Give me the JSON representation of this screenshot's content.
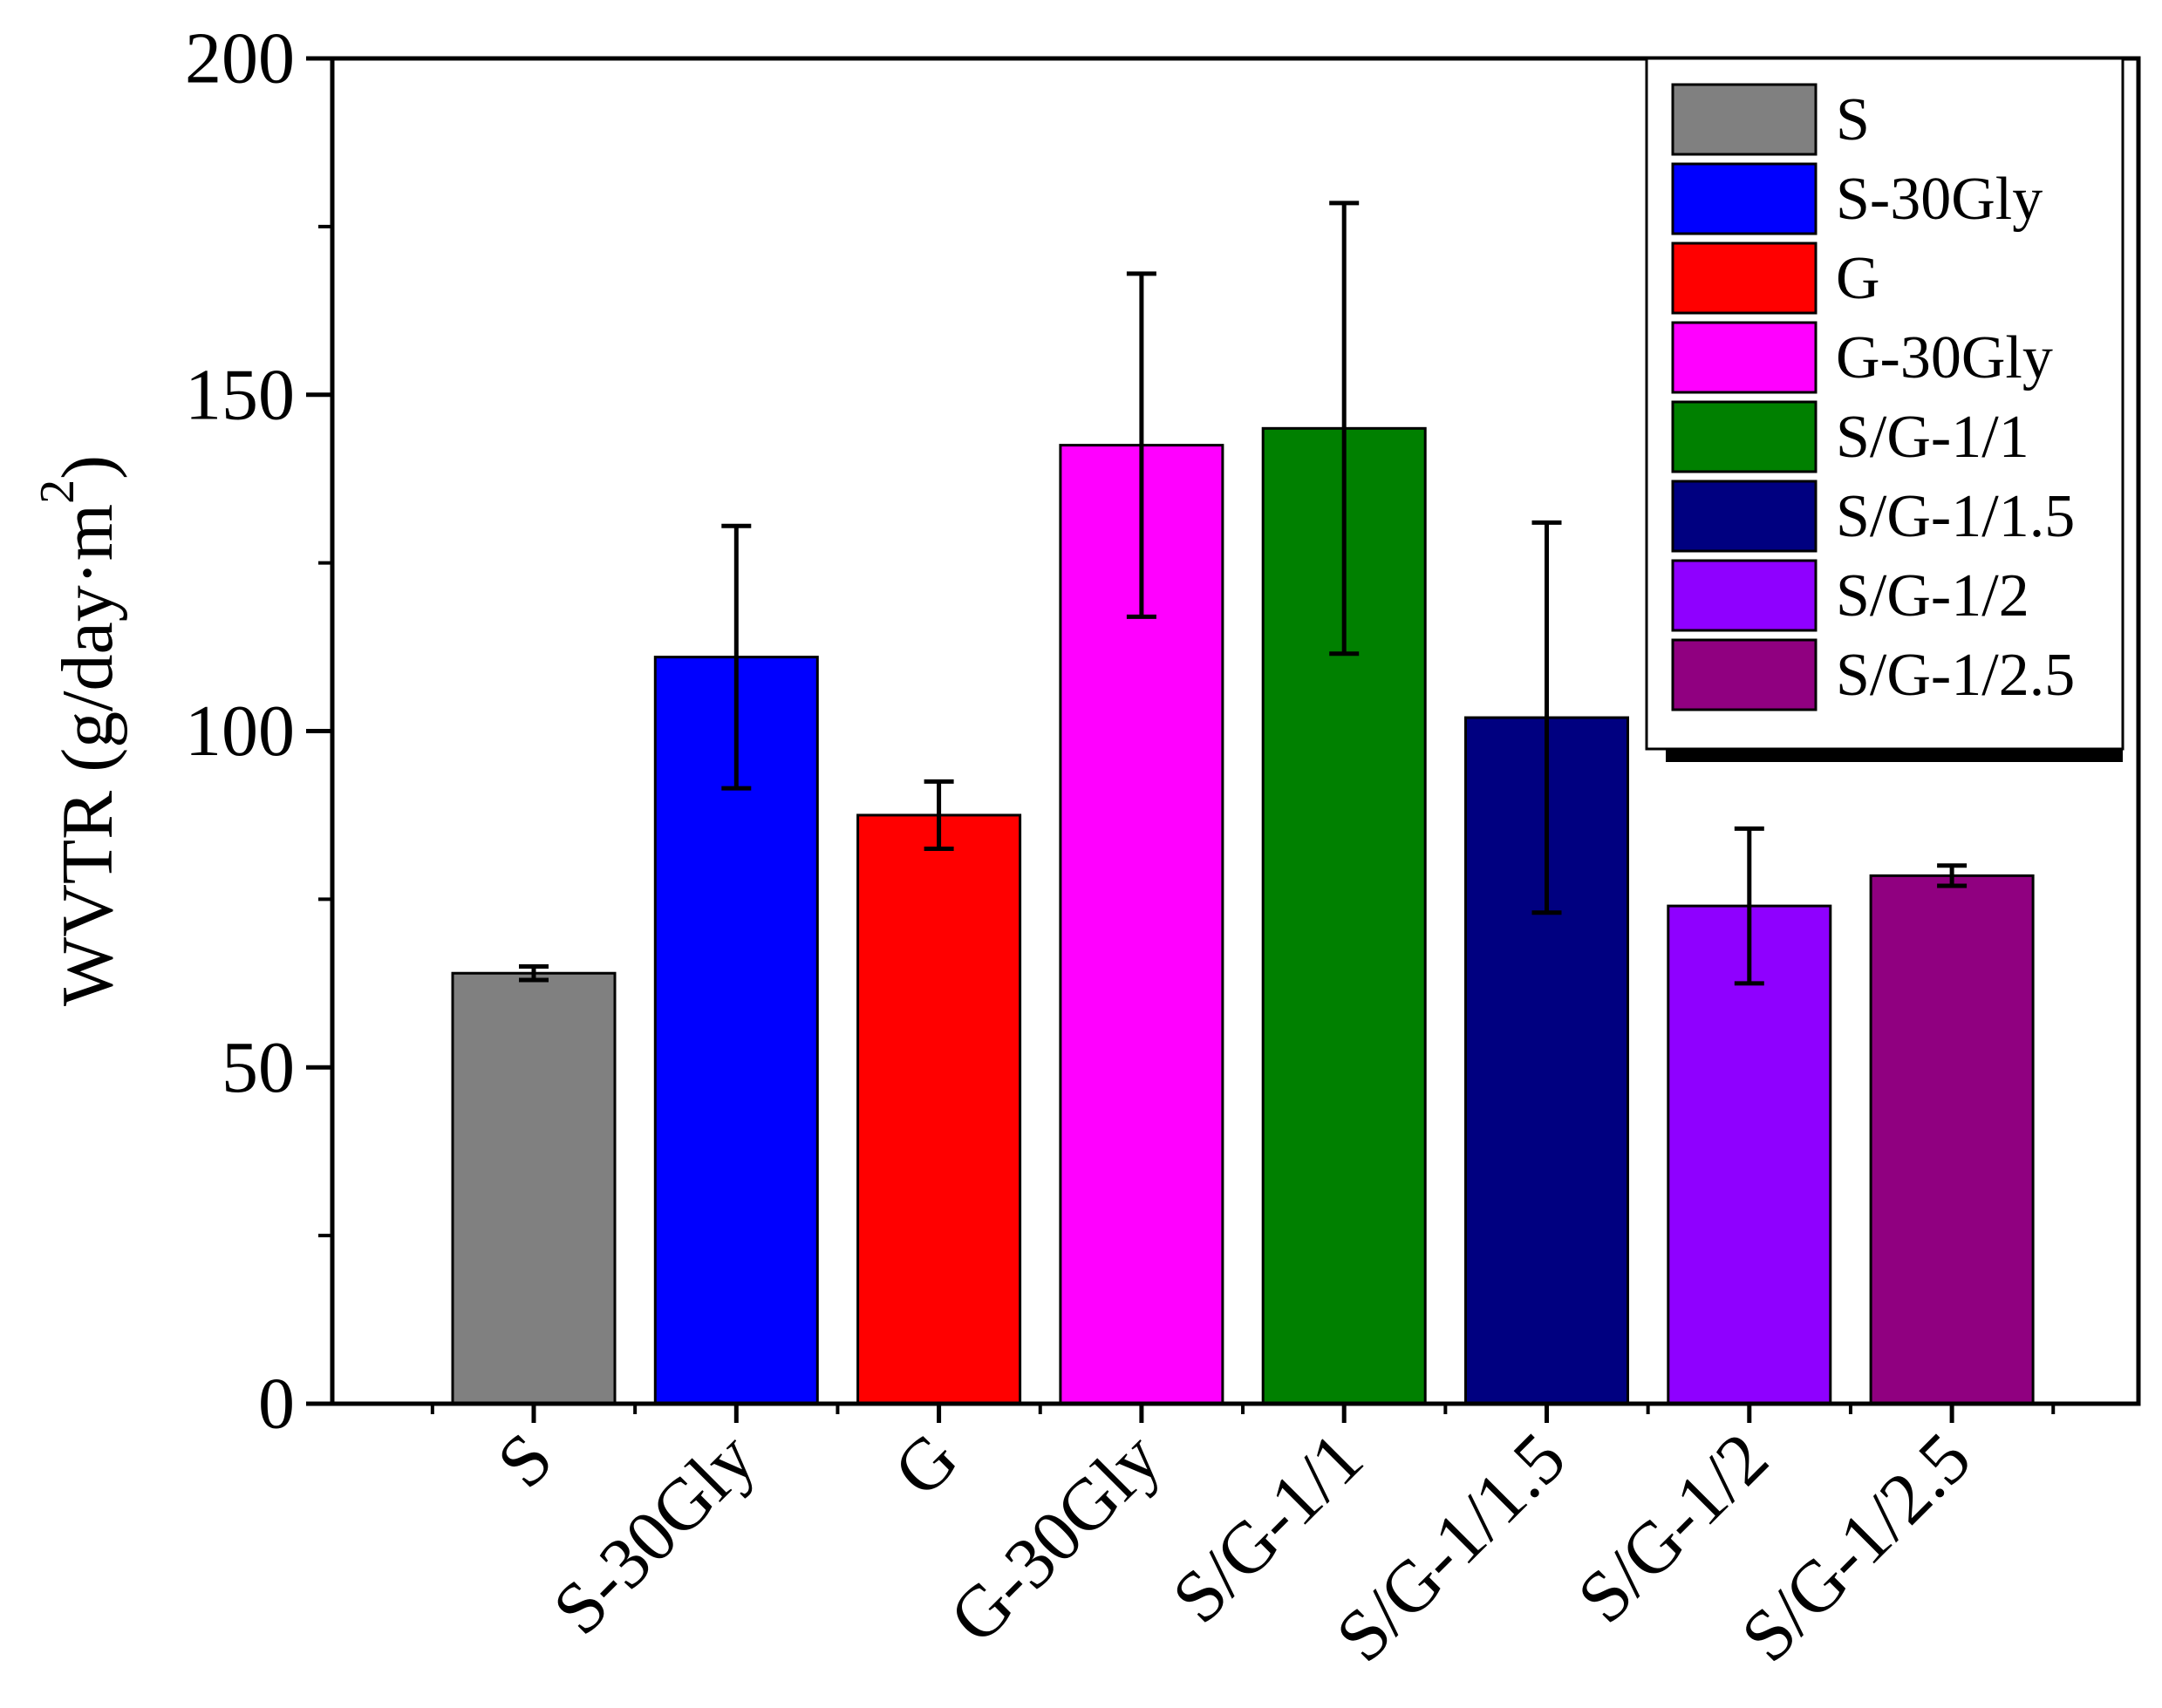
{
  "chart_data": {
    "type": "bar",
    "title": "",
    "xlabel": "",
    "ylabel": "WVTR (g/day·m",
    "ylabel_superscript": "2",
    "ylabel_close": ")",
    "ylim": [
      0,
      200
    ],
    "yticks": [
      0,
      50,
      100,
      150,
      200
    ],
    "y_minor_step": 25,
    "grid": false,
    "legend_position": "top-right",
    "categories": [
      "S",
      "S-30Gly",
      "G",
      "G-30Gly",
      "S/G-1/1",
      "S/G-1/1.5",
      "S/G-1/2",
      "S/G-1/2.5"
    ],
    "values": [
      64,
      111,
      87.5,
      142.5,
      145,
      102,
      74,
      78.5
    ],
    "errors": [
      1,
      19.5,
      5,
      25.5,
      33.5,
      29,
      11.5,
      1.5
    ],
    "colors": [
      "#808080",
      "#0000ff",
      "#ff0000",
      "#ff00ff",
      "#008000",
      "#000080",
      "#8f00ff",
      "#900080"
    ]
  }
}
